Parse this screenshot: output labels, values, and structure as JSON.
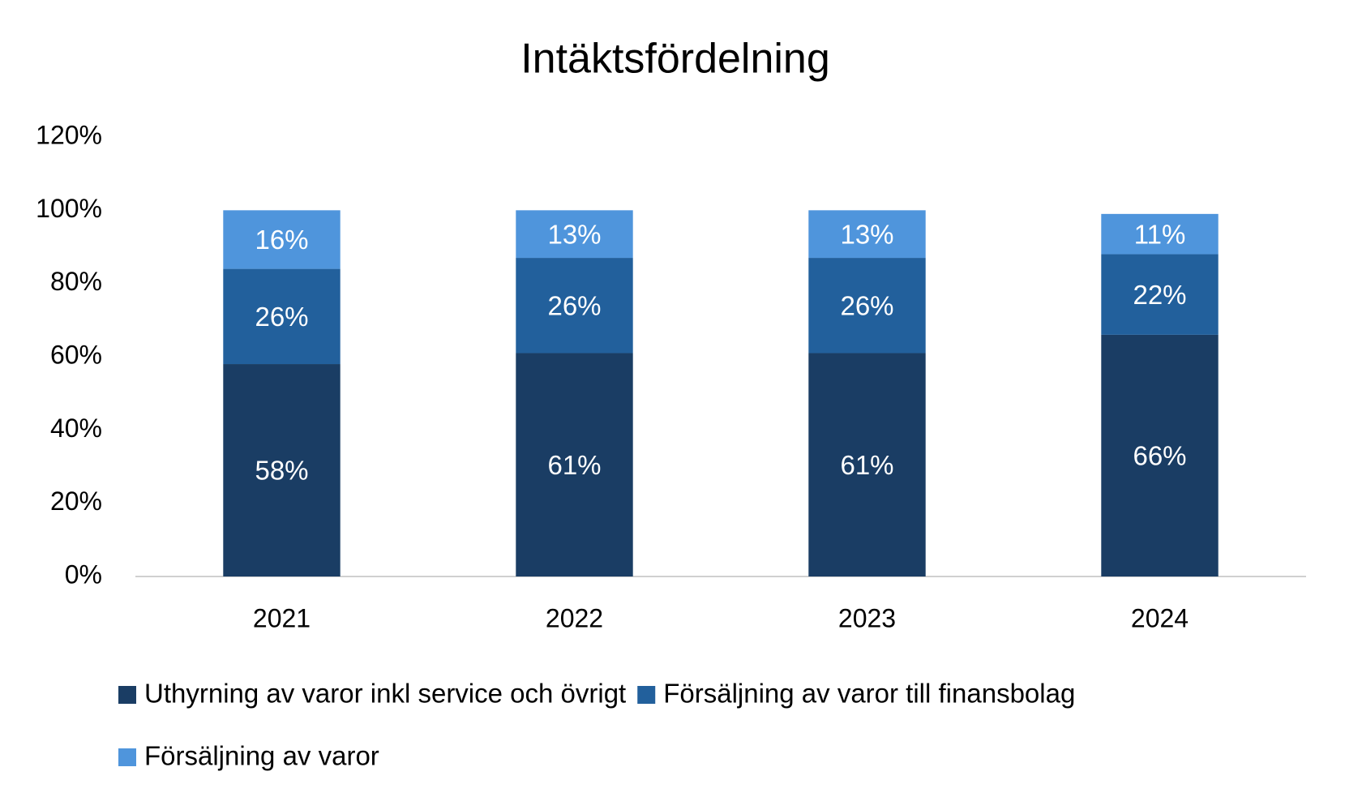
{
  "chart_data": {
    "type": "stacked-bar",
    "title": "Intäktsfördelning",
    "categories": [
      "2021",
      "2022",
      "2023",
      "2024"
    ],
    "series": [
      {
        "name": "Uthyrning av varor inkl service och övrigt",
        "color": "#1a3d64",
        "values": [
          58,
          61,
          61,
          66
        ],
        "value_labels": [
          "58%",
          "61%",
          "61%",
          "66%"
        ]
      },
      {
        "name": "Försäljning av varor till finansbolag",
        "color": "#22609c",
        "values": [
          26,
          26,
          26,
          22
        ],
        "value_labels": [
          "26%",
          "26%",
          "26%",
          "22%"
        ]
      },
      {
        "name": "Försäljning av varor",
        "color": "#4f95dc",
        "values": [
          16,
          13,
          13,
          11
        ],
        "value_labels": [
          "16%",
          "13%",
          "13%",
          "11%"
        ]
      }
    ],
    "ylim": [
      0,
      120
    ],
    "yticks": [
      {
        "value": 0,
        "label": "0%"
      },
      {
        "value": 20,
        "label": "20%"
      },
      {
        "value": 40,
        "label": "40%"
      },
      {
        "value": 60,
        "label": "60%"
      },
      {
        "value": 80,
        "label": "80%"
      },
      {
        "value": 100,
        "label": "100%"
      },
      {
        "value": 120,
        "label": "120%"
      }
    ],
    "legend": "bottom",
    "grid": false
  }
}
